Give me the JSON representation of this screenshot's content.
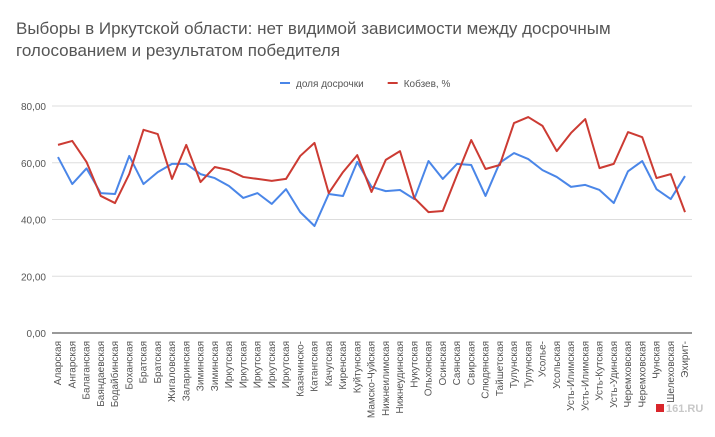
{
  "chart_data": {
    "type": "line",
    "title": "Выборы в Иркутской области: нет видимой зависимости между досрочным голосованием и результатом победителя",
    "categories": [
      "Аларская",
      "Ангарская",
      "Балаганская",
      "Баяндаевская",
      "Бодайбинская",
      "Боханская",
      "Братская",
      "Братская",
      "Жигаловская",
      "Заларинская",
      "Зиминская",
      "Зиминская",
      "Иркутская",
      "Иркутская",
      "Иркутская",
      "Иркутская",
      "Иркутская",
      "Казачинско-",
      "Катангская",
      "Качугская",
      "Киренская",
      "Куйтунская",
      "Мамско-Чуйская",
      "Нижнеилимская",
      "Нижнеудинская",
      "Нукутская",
      "Ольхонская",
      "Осинская",
      "Саянская",
      "Свирская",
      "Слюдянская",
      "Тайшетская",
      "Тулунская",
      "Тулунская",
      "Усолье-",
      "Усольская",
      "Усть-Илимская",
      "Усть-Илимская",
      "Усть-Кутская",
      "Усть-Удинская",
      "Черемховская",
      "Черемховская",
      "Чунская",
      "Шелеховская",
      "Эхирит-"
    ],
    "series": [
      {
        "name": "доля досрочки",
        "color": "#4a86e8",
        "values": [
          62,
          52.5,
          58,
          49.3,
          49,
          62.4,
          52.5,
          56.7,
          59.6,
          59.6,
          56,
          54.6,
          51.8,
          47.6,
          49.3,
          45.5,
          50.7,
          42.6,
          37.7,
          49,
          48.3,
          60.3,
          51.5,
          50,
          50.4,
          47.2,
          60.6,
          54.3,
          59.6,
          59.2,
          48.3,
          60,
          63.4,
          61.3,
          57.4,
          55,
          51.5,
          52.2,
          50.4,
          45.8,
          57,
          60.6,
          50.7,
          47.2,
          55.3
        ]
      },
      {
        "name": "Кобзев, %",
        "color": "#cc3b33",
        "values": [
          66.3,
          67.7,
          60.3,
          48.3,
          45.8,
          56,
          71.6,
          70.1,
          54.3,
          66.3,
          53.2,
          58.5,
          57.4,
          55,
          54.3,
          53.6,
          54.3,
          62.4,
          67,
          49.3,
          56.7,
          62.7,
          49.7,
          61,
          64.1,
          47.6,
          42.6,
          43,
          55.7,
          68,
          57.8,
          59.2,
          74,
          76.1,
          73,
          64.1,
          70.5,
          75.4,
          58.1,
          59.6,
          70.8,
          69,
          54.6,
          56,
          42.6
        ]
      }
    ],
    "ylim": [
      0,
      80
    ],
    "yticks": [
      {
        "value": 0,
        "label": "0,00"
      },
      {
        "value": 20,
        "label": "20,00"
      },
      {
        "value": 40,
        "label": "40,00"
      },
      {
        "value": 60,
        "label": "60,00"
      },
      {
        "value": 80,
        "label": "80,00"
      }
    ],
    "grid": true,
    "legend": "top",
    "watermark": "161.RU"
  }
}
